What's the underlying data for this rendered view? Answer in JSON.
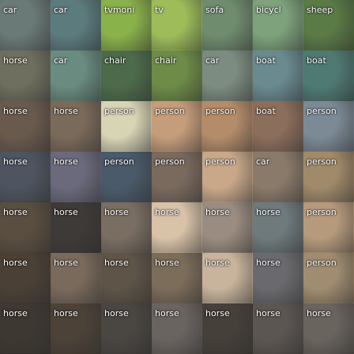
{
  "grid": {
    "rows": [
      [
        "car",
        "car",
        "tvmoni",
        "tv",
        "sofa",
        "bicycl",
        "sheep"
      ],
      [
        "horse",
        "car",
        "chair",
        "chair",
        "car",
        "boat",
        "boat"
      ],
      [
        "horse",
        "horse",
        "person",
        "person",
        "person",
        "boat",
        "person"
      ],
      [
        "horse",
        "horse",
        "person",
        "person",
        "person",
        "car",
        "person"
      ],
      [
        "horse",
        "horse",
        "horse",
        "horse",
        "horse",
        "horse",
        "person"
      ],
      [
        "horse",
        "horse",
        "horse",
        "horse",
        "horse",
        "horse",
        "person"
      ],
      [
        "horse",
        "horse",
        "horse",
        "horse",
        "horse",
        "horse",
        "horse"
      ]
    ],
    "colors": [
      [
        "#6a7a76",
        "#5c7b7d",
        "#8ab24a",
        "#9ebd5a",
        "#6f8c6f",
        "#7ea27c",
        "#5a7a46"
      ],
      [
        "#6f6f5f",
        "#6a8c80",
        "#4d6b4a",
        "#6e8c48",
        "#7c8c80",
        "#6a8a90",
        "#4f7a74"
      ],
      [
        "#6a5a4e",
        "#7a6a5a",
        "#d8d4b6",
        "#c59d7a",
        "#b48c6a",
        "#8c6e5c",
        "#7c8a96"
      ],
      [
        "#4e5560",
        "#6a6a7c",
        "#4a5a6a",
        "#7a6a5e",
        "#c9a88a",
        "#8a7a6a",
        "#a08a6a"
      ],
      [
        "#5a4e40",
        "#3e3a38",
        "#7a6e62",
        "#d8c2a8",
        "#9a8c80",
        "#6e7a7c",
        "#b69a7c"
      ],
      [
        "#4a4036",
        "#7a6a5c",
        "#5e5448",
        "#7c6c5a",
        "#c8b49c",
        "#6a6a6e",
        "#a08c70"
      ],
      [
        "#3e3832",
        "#4c4238",
        "#4a4642",
        "#6a6460",
        "#46403a",
        "#5c5652",
        "#6a645e"
      ]
    ]
  }
}
